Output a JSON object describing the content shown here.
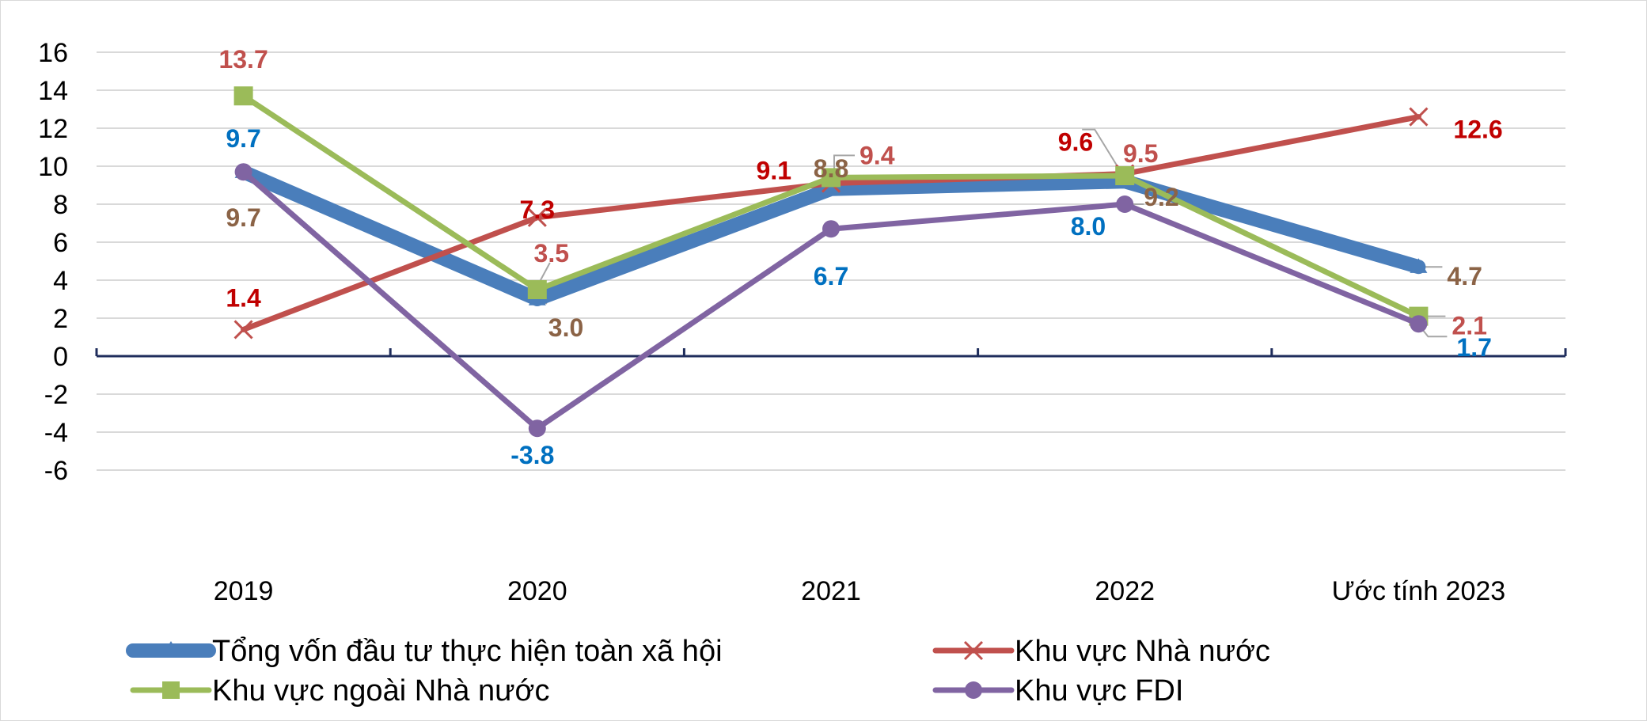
{
  "chart_data": {
    "type": "line",
    "categories": [
      "2019",
      "2020",
      "2021",
      "2022",
      "Ước tính 2023"
    ],
    "ylim": [
      -6,
      16
    ],
    "ytick_step": 2,
    "grid": true,
    "legend_position": "bottom",
    "series": [
      {
        "name": "Tổng vốn đầu tư thực hiện toàn xã hội",
        "values": [
          9.7,
          3.0,
          8.8,
          9.2,
          4.7
        ],
        "color": "#4a7ebb",
        "marker": "triangle",
        "label_color": "#8b6346"
      },
      {
        "name": "Khu vực Nhà nước",
        "values": [
          1.4,
          7.3,
          9.1,
          9.6,
          12.6
        ],
        "color": "#c0504d",
        "marker": "x",
        "label_color": "#c00000"
      },
      {
        "name": "Khu vực ngoài Nhà nước",
        "values": [
          13.7,
          3.5,
          9.4,
          9.5,
          2.1
        ],
        "color": "#9bbb59",
        "marker": "square",
        "label_color": "#c0504d"
      },
      {
        "name": "Khu vực FDI",
        "values": [
          9.7,
          -3.8,
          6.7,
          8.0,
          1.7
        ],
        "color": "#8064a2",
        "marker": "circle",
        "label_color": "#0070c0"
      }
    ]
  }
}
